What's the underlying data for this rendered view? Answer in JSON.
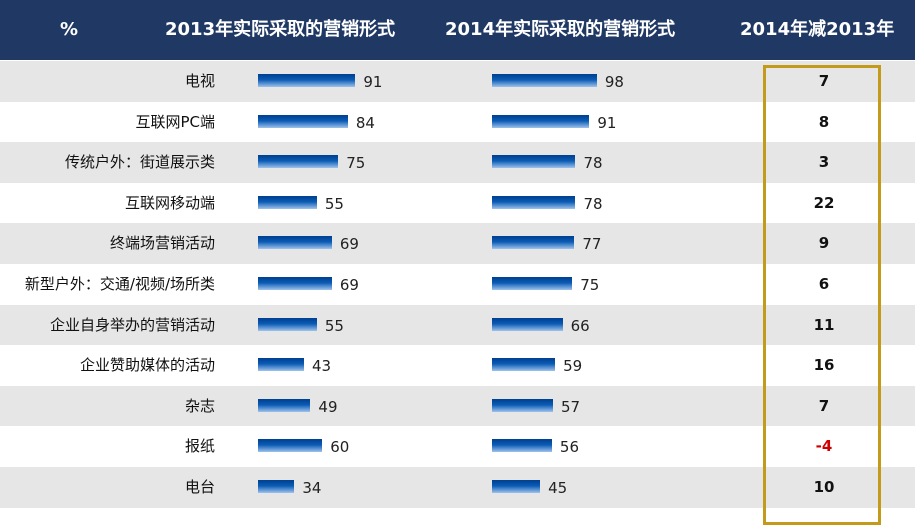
{
  "header": {
    "unit": "%",
    "col_2013": "2013年实际采取的营销形式",
    "col_2014": "2014年实际采取的营销形式",
    "col_diff": "2014年减2013年"
  },
  "colors": {
    "header_bg": "#1f3864",
    "bar": "#0a5bb5",
    "highlight": "#c49a1a",
    "negative": "#d00000"
  },
  "chart_data": {
    "type": "bar",
    "orientation": "horizontal",
    "categories": [
      "电视",
      "互联网PC端",
      "传统户外：街道展示类",
      "互联网移动端",
      "终端场营销活动",
      "新型户外：交通/视频/场所类",
      "企业自身举办的营销活动",
      "企业赞助媒体的活动",
      "杂志",
      "报纸",
      "电台"
    ],
    "series": [
      {
        "name": "2013年实际采取的营销形式",
        "values": [
          91,
          84,
          75,
          55,
          69,
          69,
          55,
          43,
          49,
          60,
          34
        ]
      },
      {
        "name": "2014年实际采取的营销形式",
        "values": [
          98,
          91,
          78,
          78,
          77,
          75,
          66,
          59,
          57,
          56,
          45
        ]
      }
    ],
    "difference": {
      "name": "2014年减2013年",
      "values": [
        "7",
        "8",
        "3",
        "22",
        "9",
        "6",
        "11",
        "16",
        "7",
        "-4",
        "10"
      ]
    },
    "unit": "%"
  }
}
